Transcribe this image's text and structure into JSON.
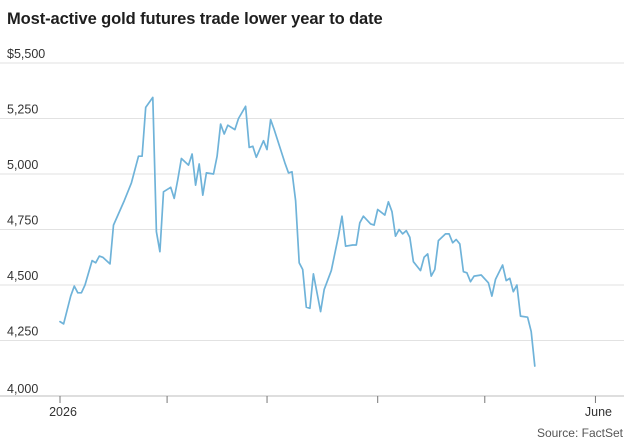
{
  "chart_data": {
    "type": "line",
    "title": "Most-active gold futures trade lower year to date",
    "source": "Source: FactSet",
    "ylim": [
      4000,
      5500
    ],
    "yticks": [
      {
        "value": 4000,
        "label": "4,000"
      },
      {
        "value": 4250,
        "label": "4,250"
      },
      {
        "value": 4500,
        "label": "4,500"
      },
      {
        "value": 4750,
        "label": "4,750"
      },
      {
        "value": 5000,
        "label": "5,000"
      },
      {
        "value": 5250,
        "label": "5,250"
      },
      {
        "value": 5500,
        "label": "$5,500"
      }
    ],
    "xlim": [
      "2026-01-02",
      "2026-06-09"
    ],
    "xticks": [
      {
        "date": "2026-01-02",
        "label": "2026"
      },
      {
        "date": "2026-06-01",
        "label": "June"
      }
    ],
    "x_minor_ticks": [
      "2026-02-01",
      "2026-03-01",
      "2026-04-01",
      "2026-05-01"
    ],
    "grid": true,
    "line_color": "#6fb3d9",
    "series": [
      {
        "points": [
          [
            "2026-01-02",
            4335
          ],
          [
            "2026-01-03",
            4325
          ],
          [
            "2026-01-05",
            4450
          ],
          [
            "2026-01-06",
            4495
          ],
          [
            "2026-01-07",
            4465
          ],
          [
            "2026-01-08",
            4465
          ],
          [
            "2026-01-09",
            4500
          ],
          [
            "2026-01-11",
            4610
          ],
          [
            "2026-01-12",
            4600
          ],
          [
            "2026-01-13",
            4630
          ],
          [
            "2026-01-14",
            4625
          ],
          [
            "2026-01-16",
            4595
          ],
          [
            "2026-01-17",
            4770
          ],
          [
            "2026-01-20",
            4880
          ],
          [
            "2026-01-22",
            4960
          ],
          [
            "2026-01-24",
            5080
          ],
          [
            "2026-01-25",
            5080
          ],
          [
            "2026-01-26",
            5300
          ],
          [
            "2026-01-28",
            5345
          ],
          [
            "2026-01-29",
            4740
          ],
          [
            "2026-01-30",
            4650
          ],
          [
            "2026-01-31",
            4920
          ],
          [
            "2026-02-02",
            4940
          ],
          [
            "2026-02-03",
            4890
          ],
          [
            "2026-02-04",
            4975
          ],
          [
            "2026-02-05",
            5070
          ],
          [
            "2026-02-07",
            5040
          ],
          [
            "2026-02-08",
            5090
          ],
          [
            "2026-02-09",
            4950
          ],
          [
            "2026-02-10",
            5045
          ],
          [
            "2026-02-11",
            4905
          ],
          [
            "2026-02-12",
            5005
          ],
          [
            "2026-02-14",
            5000
          ],
          [
            "2026-02-15",
            5080
          ],
          [
            "2026-02-16",
            5225
          ],
          [
            "2026-02-17",
            5180
          ],
          [
            "2026-02-18",
            5220
          ],
          [
            "2026-02-20",
            5200
          ],
          [
            "2026-02-21",
            5250
          ],
          [
            "2026-02-23",
            5305
          ],
          [
            "2026-02-24",
            5120
          ],
          [
            "2026-02-25",
            5125
          ],
          [
            "2026-02-26",
            5075
          ],
          [
            "2026-02-28",
            5150
          ],
          [
            "2026-03-01",
            5110
          ],
          [
            "2026-03-02",
            5245
          ],
          [
            "2026-03-03",
            5200
          ],
          [
            "2026-03-06",
            5050
          ],
          [
            "2026-03-07",
            5005
          ],
          [
            "2026-03-08",
            5010
          ],
          [
            "2026-03-09",
            4880
          ],
          [
            "2026-03-10",
            4600
          ],
          [
            "2026-03-11",
            4570
          ],
          [
            "2026-03-12",
            4400
          ],
          [
            "2026-03-13",
            4395
          ],
          [
            "2026-03-14",
            4550
          ],
          [
            "2026-03-16",
            4380
          ],
          [
            "2026-03-17",
            4480
          ],
          [
            "2026-03-19",
            4565
          ],
          [
            "2026-03-21",
            4720
          ],
          [
            "2026-03-22",
            4810
          ],
          [
            "2026-03-23",
            4675
          ],
          [
            "2026-03-25",
            4680
          ],
          [
            "2026-03-26",
            4680
          ],
          [
            "2026-03-27",
            4780
          ],
          [
            "2026-03-28",
            4810
          ],
          [
            "2026-03-30",
            4775
          ],
          [
            "2026-03-31",
            4770
          ],
          [
            "2026-04-01",
            4840
          ],
          [
            "2026-04-03",
            4815
          ],
          [
            "2026-04-04",
            4875
          ],
          [
            "2026-04-05",
            4830
          ],
          [
            "2026-04-06",
            4720
          ],
          [
            "2026-04-07",
            4750
          ],
          [
            "2026-04-08",
            4730
          ],
          [
            "2026-04-09",
            4745
          ],
          [
            "2026-04-10",
            4715
          ],
          [
            "2026-04-11",
            4605
          ],
          [
            "2026-04-13",
            4565
          ],
          [
            "2026-04-14",
            4625
          ],
          [
            "2026-04-15",
            4640
          ],
          [
            "2026-04-16",
            4540
          ],
          [
            "2026-04-17",
            4570
          ],
          [
            "2026-04-18",
            4700
          ],
          [
            "2026-04-20",
            4730
          ],
          [
            "2026-04-21",
            4730
          ],
          [
            "2026-04-22",
            4690
          ],
          [
            "2026-04-23",
            4705
          ],
          [
            "2026-04-24",
            4685
          ],
          [
            "2026-04-25",
            4560
          ],
          [
            "2026-04-26",
            4555
          ],
          [
            "2026-04-27",
            4515
          ],
          [
            "2026-04-28",
            4540
          ],
          [
            "2026-04-30",
            4545
          ],
          [
            "2026-05-02",
            4510
          ],
          [
            "2026-05-03",
            4450
          ],
          [
            "2026-05-04",
            4525
          ],
          [
            "2026-05-06",
            4590
          ],
          [
            "2026-05-07",
            4520
          ],
          [
            "2026-05-08",
            4530
          ],
          [
            "2026-05-09",
            4470
          ],
          [
            "2026-05-10",
            4500
          ],
          [
            "2026-05-11",
            4360
          ],
          [
            "2026-05-13",
            4355
          ],
          [
            "2026-05-14",
            4290
          ],
          [
            "2026-05-15",
            4135
          ]
        ]
      }
    ]
  }
}
